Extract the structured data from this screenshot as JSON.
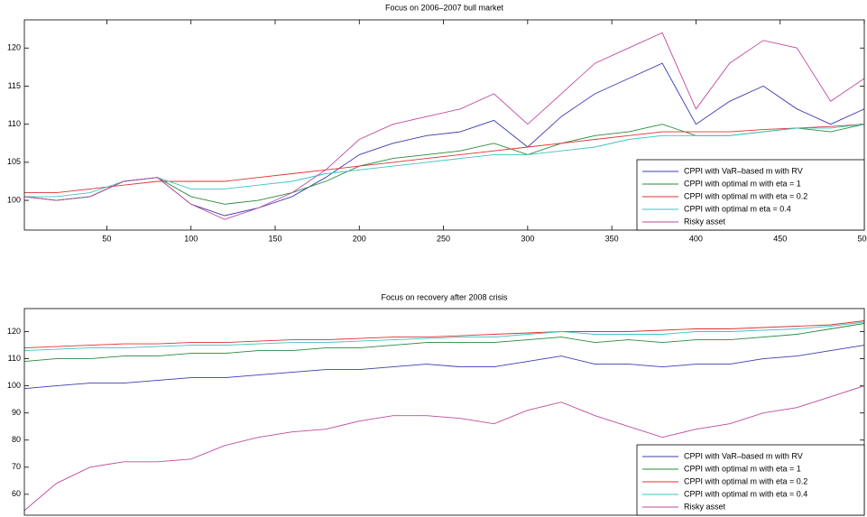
{
  "chart_data": [
    {
      "type": "line",
      "title": "Focus on 2006–2007 bull market",
      "x": [
        1,
        20,
        40,
        60,
        80,
        100,
        120,
        140,
        160,
        180,
        200,
        220,
        240,
        260,
        280,
        300,
        320,
        340,
        360,
        380,
        400,
        420,
        440,
        460,
        480,
        500
      ],
      "xlim": [
        1,
        500
      ],
      "xticks": [
        50,
        100,
        150,
        200,
        250,
        300,
        350,
        400,
        450,
        500
      ],
      "ylim": [
        96.1,
        123.7
      ],
      "yticks": [
        100,
        105,
        110,
        115,
        120
      ],
      "legend": "lower right",
      "show_xtick_labels": true,
      "series": [
        {
          "name": "CPPI with VaR–based m with RV",
          "color": "#3c3cb4",
          "values": [
            100.5,
            100,
            100.5,
            102.5,
            103,
            99.5,
            98,
            99,
            100.5,
            103,
            106,
            107.5,
            108.5,
            109,
            110.5,
            107,
            111,
            114,
            116,
            118,
            110,
            113,
            115,
            112,
            110,
            112
          ]
        },
        {
          "name": "CPPI with optimal m with eta = 1",
          "color": "#2a8a3a",
          "values": [
            100.5,
            100,
            100.5,
            102.5,
            103,
            100.5,
            99.5,
            100,
            101,
            102.5,
            104.5,
            105.5,
            106,
            106.5,
            107.5,
            106,
            107.5,
            108.5,
            109,
            110,
            108.5,
            108.5,
            109,
            109.5,
            109,
            110
          ]
        },
        {
          "name": "CPPI with optimal m with eta = 0.2",
          "color": "#e03232",
          "values": [
            101,
            101,
            101.5,
            102,
            102.5,
            102.5,
            102.5,
            103,
            103.5,
            104,
            104.5,
            105,
            105.5,
            106,
            106.5,
            107,
            107.5,
            108,
            108.5,
            109,
            109,
            109,
            109.3,
            109.5,
            109.7,
            110
          ]
        },
        {
          "name": "CPPI with optimal m eta = 0.4",
          "color": "#3cc4c4",
          "values": [
            100.5,
            100.5,
            101,
            102.5,
            103,
            101.5,
            101.5,
            102,
            102.5,
            103.5,
            104,
            104.5,
            105,
            105.5,
            106,
            106,
            106.5,
            107,
            108,
            108.5,
            108.5,
            108.5,
            109,
            109.5,
            109.5,
            110
          ]
        },
        {
          "name": "Risky asset",
          "color": "#c04a9e",
          "values": [
            100.5,
            100,
            100.5,
            102.5,
            103,
            99.5,
            97.5,
            99,
            101,
            104,
            108,
            110,
            111,
            112,
            114,
            110,
            114,
            118,
            120,
            122,
            112,
            118,
            121,
            120,
            113,
            116
          ]
        }
      ]
    },
    {
      "type": "line",
      "title": "Focus on recovery after 2008 crisis",
      "x": [
        1,
        20,
        40,
        60,
        80,
        100,
        120,
        140,
        160,
        180,
        200,
        220,
        240,
        260,
        280,
        300,
        320,
        340,
        360,
        380,
        400,
        420,
        440,
        460,
        480,
        500
      ],
      "xlim": [
        1,
        500
      ],
      "ylim": [
        52.3,
        128.5
      ],
      "yticks": [
        60,
        70,
        80,
        90,
        100,
        110,
        120
      ],
      "legend": "lower right",
      "show_xtick_labels": false,
      "series": [
        {
          "name": "CPPI with VaR–based m with RV",
          "color": "#3c3cb4",
          "values": [
            99,
            100,
            101,
            101,
            102,
            103,
            103,
            104,
            105,
            106,
            106,
            107,
            108,
            107,
            107,
            109,
            111,
            108,
            108,
            107,
            108,
            108,
            110,
            111,
            113,
            115
          ]
        },
        {
          "name": "CPPI with optimal m with eta = 1",
          "color": "#2a8a3a",
          "values": [
            109,
            110,
            110,
            111,
            111,
            112,
            112,
            113,
            113,
            114,
            114,
            115,
            116,
            116,
            116,
            117,
            118,
            116,
            117,
            116,
            117,
            117,
            118,
            119,
            121,
            123
          ]
        },
        {
          "name": "CPPI with optimal m with eta = 0.2",
          "color": "#e03232",
          "values": [
            114,
            114.5,
            115,
            115.5,
            115.5,
            116,
            116,
            116.5,
            117,
            117,
            117.5,
            118,
            118,
            118.5,
            119,
            119.5,
            120,
            120,
            120,
            120.5,
            121,
            121,
            121.5,
            122,
            122.5,
            124
          ]
        },
        {
          "name": "CPPI with optimal m with eta = 0.4",
          "color": "#3cc4c4",
          "values": [
            113,
            113.5,
            114,
            114,
            114.5,
            115,
            115,
            115.5,
            116,
            116,
            116.5,
            117,
            117.5,
            118,
            118,
            119,
            120,
            119,
            119,
            119,
            120,
            120,
            120.5,
            121,
            122,
            123.5
          ]
        },
        {
          "name": "Risky asset",
          "color": "#c04a9e",
          "values": [
            54,
            64,
            70,
            72,
            72,
            73,
            78,
            81,
            83,
            84,
            87,
            89,
            89,
            88,
            86,
            91,
            94,
            89,
            85,
            81,
            84,
            86,
            90,
            92,
            96,
            100
          ]
        }
      ]
    }
  ]
}
